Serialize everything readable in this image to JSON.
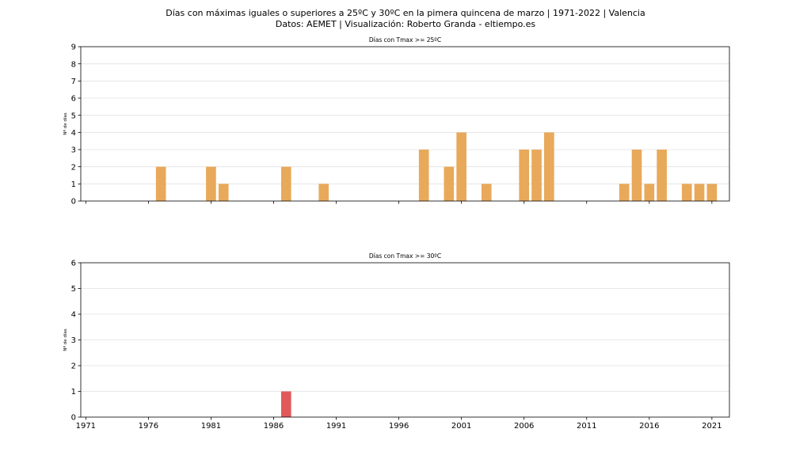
{
  "figure": {
    "title": "Días con máximas iguales o superiores a 25ºC y 30ºC en la pimera quincena de marzo | 1971-2022 | Valencia",
    "subtitle": "Datos: AEMET | Visualización: Roberto Granda - eltiempo.es"
  },
  "chart_data": [
    {
      "type": "bar",
      "title": "Días con Tmax >= 25ºC",
      "xlabel": "",
      "ylabel": "Nº de días",
      "xlim": [
        1970.6,
        2022.4
      ],
      "ylim": [
        0,
        9
      ],
      "yticks": [
        0,
        1,
        2,
        3,
        4,
        5,
        6,
        7,
        8,
        9
      ],
      "xticks": [
        1971,
        1976,
        1981,
        1986,
        1991,
        1996,
        2001,
        2006,
        2011,
        2016,
        2021
      ],
      "show_xtick_labels": false,
      "grid": "y",
      "color": "#e8a95b",
      "x": [
        1977,
        1981,
        1982,
        1987,
        1990,
        1998,
        2000,
        2001,
        2003,
        2006,
        2007,
        2008,
        2014,
        2015,
        2016,
        2017,
        2019,
        2020,
        2021
      ],
      "values": [
        2,
        2,
        1,
        2,
        1,
        3,
        2,
        4,
        1,
        3,
        3,
        4,
        1,
        3,
        1,
        3,
        1,
        1,
        1
      ]
    },
    {
      "type": "bar",
      "title": "Días con Tmax >= 30ºC",
      "xlabel": "",
      "ylabel": "Nº de días",
      "xlim": [
        1970.6,
        2022.4
      ],
      "ylim": [
        0,
        6
      ],
      "yticks": [
        0,
        1,
        2,
        3,
        4,
        5,
        6
      ],
      "xticks": [
        1971,
        1976,
        1981,
        1986,
        1991,
        1996,
        2001,
        2006,
        2011,
        2016,
        2021
      ],
      "xtick_labels": [
        "1971",
        "1976",
        "1981",
        "1986",
        "1991",
        "1996",
        "2001",
        "2006",
        "2011",
        "2016",
        "2021"
      ],
      "show_xtick_labels": true,
      "grid": "y",
      "color": "#e05a5a",
      "x": [
        1987
      ],
      "values": [
        1
      ]
    }
  ]
}
